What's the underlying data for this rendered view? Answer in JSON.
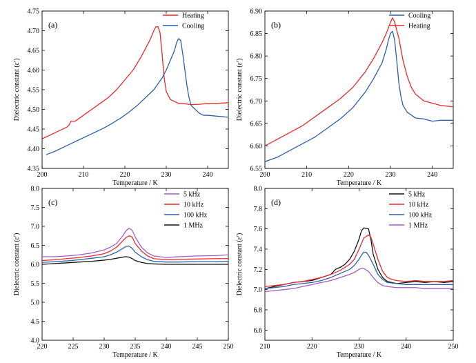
{
  "chart_data": [
    {
      "type": "line",
      "panel_label": "(a)",
      "xlabel": "Temperature / K",
      "ylabel": "Dielectric constant (ε′)",
      "xlim": [
        200,
        245
      ],
      "ylim": [
        4.35,
        4.75
      ],
      "xticks": [
        200,
        210,
        220,
        230,
        240
      ],
      "yticks": [
        4.35,
        4.4,
        4.45,
        4.5,
        4.55,
        4.6,
        4.65,
        4.7,
        4.75
      ],
      "ytick_decimals": 2,
      "legend_position": "top-right",
      "series": [
        {
          "name": "Heating",
          "color": "#e8282b",
          "x": [
            200,
            202,
            204,
            206,
            206.5,
            207,
            208,
            210,
            212,
            214,
            216,
            218,
            220,
            222,
            224,
            225,
            226,
            227,
            227.5,
            228,
            228.5,
            229,
            229.5,
            230,
            230.5,
            231,
            232,
            233,
            234,
            236,
            238,
            240,
            242,
            245
          ],
          "y": [
            4.425,
            4.435,
            4.445,
            4.455,
            4.46,
            4.47,
            4.47,
            4.485,
            4.5,
            4.515,
            4.53,
            4.55,
            4.575,
            4.6,
            4.635,
            4.655,
            4.675,
            4.7,
            4.71,
            4.71,
            4.695,
            4.64,
            4.58,
            4.545,
            4.535,
            4.525,
            4.52,
            4.515,
            4.515,
            4.512,
            4.513,
            4.515,
            4.515,
            4.517
          ]
        },
        {
          "name": "Cooling",
          "color": "#2c5fa8",
          "x": [
            201,
            203,
            205,
            207,
            209,
            211,
            213,
            215,
            217,
            219,
            221,
            223,
            225,
            227,
            229,
            230,
            231,
            232,
            232.5,
            233,
            233.5,
            234,
            234.5,
            235,
            235.5,
            236,
            237,
            238,
            239,
            240,
            242,
            245
          ],
          "y": [
            4.385,
            4.393,
            4.403,
            4.413,
            4.423,
            4.433,
            4.443,
            4.453,
            4.465,
            4.478,
            4.493,
            4.51,
            4.53,
            4.55,
            4.58,
            4.6,
            4.625,
            4.65,
            4.67,
            4.68,
            4.675,
            4.64,
            4.6,
            4.56,
            4.53,
            4.51,
            4.5,
            4.49,
            4.485,
            4.485,
            4.483,
            4.48
          ]
        }
      ]
    },
    {
      "type": "line",
      "panel_label": "(b)",
      "xlabel": "Temperature / K",
      "ylabel": "Dielectric constant (ε′)",
      "xlim": [
        200,
        245
      ],
      "ylim": [
        6.55,
        6.9
      ],
      "xticks": [
        200,
        210,
        220,
        230,
        240
      ],
      "yticks": [
        6.55,
        6.6,
        6.65,
        6.7,
        6.75,
        6.8,
        6.85,
        6.9
      ],
      "ytick_decimals": 2,
      "legend_position": "top-right",
      "series": [
        {
          "name": "Cooling",
          "color": "#2c5fa8",
          "x": [
            200,
            203,
            206,
            209,
            212,
            215,
            218,
            221,
            224,
            226,
            228,
            229,
            229.5,
            230,
            230.5,
            231,
            231.5,
            232,
            232.5,
            233,
            234,
            236,
            238,
            240,
            242,
            245
          ],
          "y": [
            6.565,
            6.575,
            6.59,
            6.605,
            6.62,
            6.64,
            6.66,
            6.685,
            6.72,
            6.75,
            6.785,
            6.815,
            6.835,
            6.85,
            6.855,
            6.835,
            6.79,
            6.74,
            6.71,
            6.69,
            6.675,
            6.662,
            6.66,
            6.655,
            6.657,
            6.657
          ]
        },
        {
          "name": "Heating",
          "color": "#e8282b",
          "x": [
            200,
            203,
            206,
            209,
            212,
            215,
            218,
            221,
            224,
            226,
            228,
            229,
            230,
            230.5,
            231,
            232,
            233,
            234,
            235,
            236,
            238,
            240,
            242,
            245
          ],
          "y": [
            6.6,
            6.615,
            6.63,
            6.645,
            6.665,
            6.685,
            6.705,
            6.73,
            6.765,
            6.795,
            6.83,
            6.85,
            6.875,
            6.885,
            6.875,
            6.84,
            6.79,
            6.755,
            6.73,
            6.715,
            6.7,
            6.695,
            6.69,
            6.687
          ]
        }
      ]
    },
    {
      "type": "line",
      "panel_label": "(c)",
      "xlabel": "Temperature / K",
      "ylabel": "Dielectric constant (ε′)",
      "xlim": [
        220,
        250
      ],
      "ylim": [
        4.0,
        8.0
      ],
      "xticks": [
        220,
        225,
        230,
        235,
        240,
        245,
        250
      ],
      "yticks": [
        4.0,
        4.5,
        5.0,
        5.5,
        6.0,
        6.5,
        7.0,
        7.5,
        8.0
      ],
      "ytick_decimals": 1,
      "legend_position": "top-right",
      "series": [
        {
          "name": "5 kHz",
          "color": "#a25bc4",
          "x": [
            220,
            222,
            224,
            226,
            228,
            230,
            231,
            232,
            233,
            233.5,
            234,
            234.5,
            235,
            236,
            237,
            238,
            240,
            242,
            245,
            248,
            250
          ],
          "y": [
            6.2,
            6.2,
            6.22,
            6.25,
            6.3,
            6.38,
            6.45,
            6.55,
            6.75,
            6.88,
            6.95,
            6.9,
            6.72,
            6.45,
            6.3,
            6.22,
            6.18,
            6.2,
            6.22,
            6.23,
            6.25
          ]
        },
        {
          "name": "10 kHz",
          "color": "#e8282b",
          "x": [
            220,
            222,
            224,
            226,
            228,
            230,
            231,
            232,
            233,
            233.5,
            234,
            234.5,
            235,
            236,
            237,
            238,
            240,
            242,
            245,
            248,
            250
          ],
          "y": [
            6.1,
            6.12,
            6.15,
            6.18,
            6.22,
            6.28,
            6.35,
            6.45,
            6.62,
            6.7,
            6.75,
            6.72,
            6.55,
            6.35,
            6.22,
            6.15,
            6.12,
            6.13,
            6.14,
            6.15,
            6.15
          ]
        },
        {
          "name": "100 kHz",
          "color": "#2c5fa8",
          "x": [
            220,
            222,
            224,
            226,
            228,
            230,
            231,
            232,
            233,
            233.5,
            234,
            234.5,
            235,
            236,
            237,
            238,
            240,
            242,
            245,
            248,
            250
          ],
          "y": [
            6.05,
            6.07,
            6.09,
            6.12,
            6.16,
            6.2,
            6.25,
            6.32,
            6.42,
            6.47,
            6.48,
            6.42,
            6.32,
            6.2,
            6.12,
            6.08,
            6.06,
            6.06,
            6.07,
            6.07,
            6.08
          ]
        },
        {
          "name": "1 MHz",
          "color": "#111111",
          "x": [
            220,
            222,
            224,
            226,
            228,
            230,
            231,
            232,
            233,
            233.5,
            234,
            234.5,
            235,
            236,
            237,
            238,
            240,
            242,
            245,
            248,
            250
          ],
          "y": [
            6.0,
            6.02,
            6.04,
            6.06,
            6.08,
            6.11,
            6.13,
            6.16,
            6.19,
            6.2,
            6.19,
            6.15,
            6.1,
            6.05,
            6.02,
            6.01,
            6.0,
            6.0,
            6.0,
            6.0,
            6.0
          ]
        }
      ]
    },
    {
      "type": "line",
      "panel_label": "(d)",
      "xlabel": "Temperature / K",
      "ylabel": "Dielectric constant (ε′)",
      "xlim": [
        210,
        250
      ],
      "ylim": [
        6.5,
        8.0
      ],
      "xticks": [
        210,
        220,
        230,
        240,
        250
      ],
      "yticks": [
        6.6,
        6.8,
        7.0,
        7.2,
        7.4,
        7.6,
        7.8,
        8.0
      ],
      "ytick_decimals": 1,
      "legend_position": "top-right",
      "series": [
        {
          "name": "5 kHz",
          "color": "#111111",
          "x": [
            210,
            212,
            214,
            216,
            218,
            220,
            222,
            224,
            225,
            226,
            227,
            228,
            229,
            230,
            230.5,
            231,
            232,
            232.5,
            233,
            234,
            235,
            236,
            237,
            238,
            240,
            242,
            244,
            246,
            248,
            250
          ],
          "y": [
            7.01,
            7.03,
            7.05,
            7.07,
            7.08,
            7.09,
            7.12,
            7.15,
            7.2,
            7.22,
            7.25,
            7.3,
            7.38,
            7.5,
            7.58,
            7.61,
            7.6,
            7.5,
            7.35,
            7.2,
            7.12,
            7.08,
            7.07,
            7.06,
            7.07,
            7.08,
            7.07,
            7.08,
            7.07,
            7.08
          ]
        },
        {
          "name": "10 kHz",
          "color": "#e8282b",
          "x": [
            210,
            212,
            214,
            216,
            218,
            220,
            222,
            224,
            226,
            228,
            229,
            230,
            231,
            232,
            232.5,
            233,
            234,
            235,
            236,
            237,
            238,
            240,
            242,
            244,
            246,
            248,
            250
          ],
          "y": [
            7.03,
            7.04,
            7.05,
            7.07,
            7.08,
            7.1,
            7.12,
            7.15,
            7.19,
            7.25,
            7.3,
            7.4,
            7.51,
            7.54,
            7.52,
            7.45,
            7.3,
            7.18,
            7.12,
            7.1,
            7.09,
            7.08,
            7.09,
            7.08,
            7.08,
            7.08,
            7.09
          ]
        },
        {
          "name": "100 kHz",
          "color": "#2c5fa8",
          "x": [
            210,
            212,
            214,
            216,
            218,
            220,
            222,
            224,
            226,
            228,
            229,
            230,
            230.5,
            231,
            231.5,
            232,
            233,
            234,
            235,
            236,
            238,
            240,
            242,
            244,
            246,
            248,
            250
          ],
          "y": [
            7.01,
            7.02,
            7.03,
            7.05,
            7.06,
            7.07,
            7.09,
            7.12,
            7.16,
            7.2,
            7.24,
            7.3,
            7.34,
            7.37,
            7.37,
            7.34,
            7.25,
            7.15,
            7.1,
            7.07,
            7.06,
            7.05,
            7.05,
            7.05,
            7.05,
            7.05,
            7.05
          ]
        },
        {
          "name": "1 MHz",
          "color": "#a25bc4",
          "x": [
            210,
            212,
            214,
            216,
            218,
            220,
            222,
            224,
            226,
            228,
            229,
            230,
            230.5,
            231,
            232,
            233,
            234,
            235,
            236,
            238,
            240,
            242,
            244,
            246,
            248,
            250
          ],
          "y": [
            6.98,
            6.99,
            7.0,
            7.01,
            7.03,
            7.05,
            7.07,
            7.09,
            7.12,
            7.15,
            7.17,
            7.2,
            7.21,
            7.21,
            7.18,
            7.12,
            7.07,
            7.04,
            7.03,
            7.02,
            7.02,
            7.02,
            7.01,
            7.01,
            7.01,
            7.01
          ]
        }
      ]
    }
  ]
}
